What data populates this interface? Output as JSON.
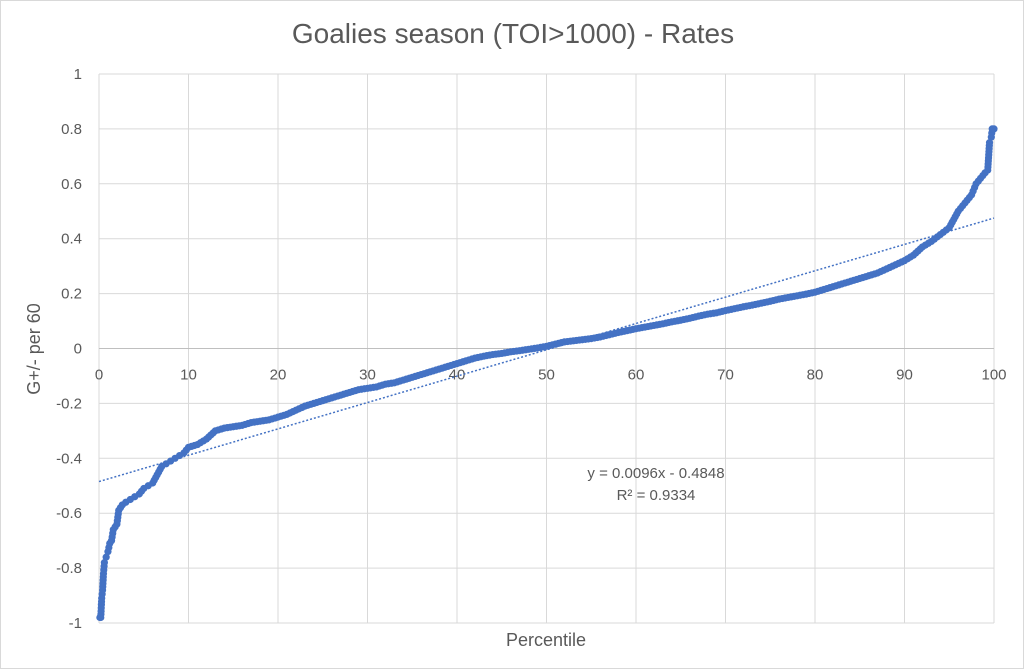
{
  "chart_data": {
    "type": "scatter",
    "title": "Goalies season (TOI>1000) - Rates",
    "xlabel": "Percentile",
    "ylabel": "G+/- per 60",
    "xlim": [
      0,
      100
    ],
    "ylim": [
      -1,
      1
    ],
    "x_ticks": [
      "0",
      "10",
      "20",
      "30",
      "40",
      "50",
      "60",
      "70",
      "80",
      "90",
      "100"
    ],
    "y_ticks": [
      "1",
      "0.8",
      "0.6",
      "0.4",
      "0.2",
      "0",
      "-0.2",
      "-0.4",
      "-0.6",
      "-0.8",
      "-1"
    ],
    "grid": true,
    "legend": "none",
    "marker_color": "#4472c4",
    "series": [
      {
        "x": [
          0.1,
          0.2,
          0.3,
          0.4,
          0.5,
          0.6,
          0.8,
          1.0,
          1.2,
          1.4,
          1.6,
          1.8,
          2.0,
          2.2,
          2.4,
          2.6,
          3.0,
          3.5,
          4.0,
          4.5,
          5.0,
          5.5,
          6.0,
          6.5,
          7.0,
          7.5,
          8.0,
          8.5,
          9.0,
          9.5,
          10.0,
          11.0,
          12.0,
          13.0,
          14.0,
          15.0,
          16.0,
          17.0,
          18.0,
          19.0,
          20.0,
          21.0,
          22.0,
          23.0,
          24.0,
          25.0,
          26.0,
          27.0,
          28.0,
          29.0,
          30.0,
          31.0,
          32.0,
          33.0,
          34.0,
          35.0,
          36.0,
          37.0,
          38.0,
          39.0,
          40.0,
          41.0,
          42.0,
          43.0,
          44.0,
          45.0,
          46.0,
          47.0,
          48.0,
          49.0,
          50.0,
          51.0,
          52.0,
          53.0,
          54.0,
          55.0,
          56.0,
          57.0,
          58.0,
          59.0,
          60.0,
          61.0,
          62.0,
          63.0,
          64.0,
          65.0,
          66.0,
          67.0,
          68.0,
          69.0,
          70.0,
          71.0,
          72.0,
          73.0,
          74.0,
          75.0,
          76.0,
          77.0,
          78.0,
          79.0,
          80.0,
          81.0,
          82.0,
          83.0,
          84.0,
          85.0,
          86.0,
          87.0,
          88.0,
          89.0,
          90.0,
          91.0,
          92.0,
          93.0,
          94.0,
          95.0,
          95.5,
          96.0,
          96.5,
          97.0,
          97.5,
          98.0,
          98.5,
          99.0,
          99.3,
          99.5,
          99.7,
          99.8,
          100.0
        ],
        "y": [
          -0.98,
          -0.98,
          -0.91,
          -0.88,
          -0.82,
          -0.78,
          -0.76,
          -0.74,
          -0.71,
          -0.7,
          -0.66,
          -0.65,
          -0.64,
          -0.59,
          -0.58,
          -0.57,
          -0.56,
          -0.55,
          -0.54,
          -0.53,
          -0.51,
          -0.5,
          -0.49,
          -0.46,
          -0.43,
          -0.42,
          -0.41,
          -0.4,
          -0.39,
          -0.38,
          -0.36,
          -0.35,
          -0.33,
          -0.3,
          -0.29,
          -0.285,
          -0.28,
          -0.27,
          -0.265,
          -0.26,
          -0.25,
          -0.24,
          -0.225,
          -0.21,
          -0.2,
          -0.19,
          -0.18,
          -0.17,
          -0.16,
          -0.15,
          -0.145,
          -0.14,
          -0.13,
          -0.125,
          -0.115,
          -0.105,
          -0.095,
          -0.085,
          -0.075,
          -0.065,
          -0.055,
          -0.045,
          -0.035,
          -0.028,
          -0.022,
          -0.018,
          -0.012,
          -0.008,
          -0.003,
          0.002,
          0.008,
          0.016,
          0.024,
          0.028,
          0.032,
          0.036,
          0.042,
          0.05,
          0.058,
          0.065,
          0.072,
          0.078,
          0.084,
          0.09,
          0.097,
          0.103,
          0.11,
          0.118,
          0.125,
          0.13,
          0.138,
          0.145,
          0.152,
          0.158,
          0.165,
          0.172,
          0.18,
          0.186,
          0.192,
          0.198,
          0.205,
          0.215,
          0.225,
          0.235,
          0.245,
          0.255,
          0.265,
          0.275,
          0.29,
          0.305,
          0.32,
          0.34,
          0.37,
          0.39,
          0.415,
          0.44,
          0.47,
          0.5,
          0.52,
          0.54,
          0.56,
          0.6,
          0.62,
          0.64,
          0.65,
          0.75,
          0.77,
          0.8,
          0.8
        ]
      }
    ],
    "trendline": {
      "type": "linear",
      "slope": 0.0096,
      "intercept": -0.4848,
      "equation": "y = 0.0096x - 0.4848",
      "r_squared": "R² = 0.9334",
      "color": "#4472c4"
    }
  }
}
